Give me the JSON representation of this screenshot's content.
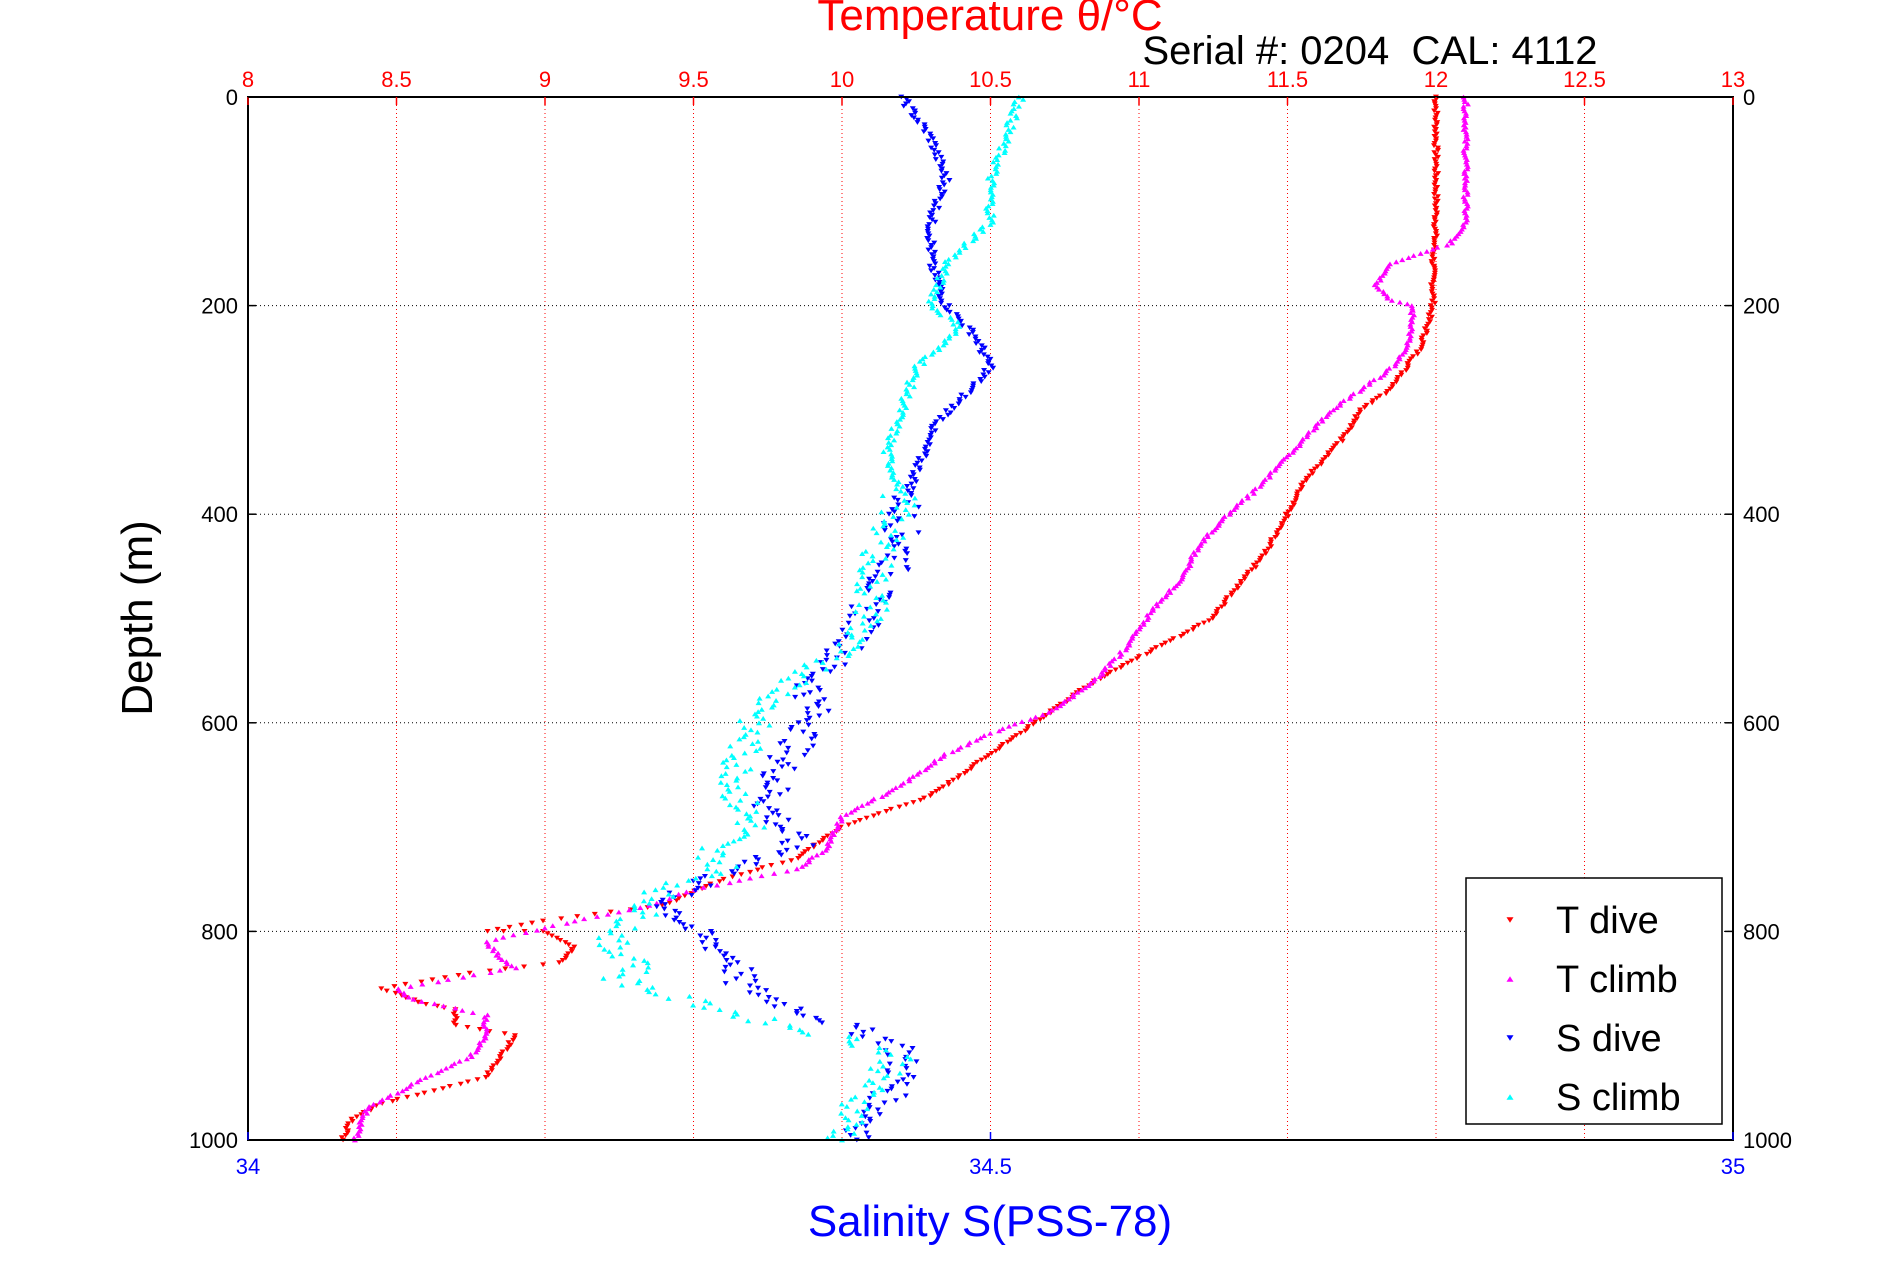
{
  "chart_data": {
    "type": "scatter",
    "title": "Temperature θ/°C",
    "annotation": "Serial #: 0204  CAL: 4112",
    "ylabel": "Depth (m)",
    "xlabel": "Salinity S(PSS-78)",
    "ylim": [
      1000,
      0
    ],
    "y_ticks": [
      "0",
      "200",
      "400",
      "600",
      "800",
      "1000"
    ],
    "x_top": {
      "label": "Temperature θ/°C",
      "range": [
        8,
        13
      ],
      "ticks": [
        "8",
        "8.5",
        "9",
        "9.5",
        "10",
        "10.5",
        "11",
        "11.5",
        "12",
        "12.5",
        "13"
      ],
      "color": "#ff0000"
    },
    "x_bottom": {
      "label": "Salinity S(PSS-78)",
      "range": [
        34,
        35
      ],
      "ticks": [
        "34",
        "34.5",
        "35"
      ],
      "color": "#0000ff"
    },
    "grid": true,
    "legend_position": "bottom-right",
    "series": [
      {
        "name": "T dive",
        "axis": "top",
        "color": "#ff0000",
        "marker": "triangle-down",
        "points": [
          [
            12.0,
            0
          ],
          [
            12.0,
            40
          ],
          [
            12.0,
            80
          ],
          [
            12.0,
            120
          ],
          [
            11.99,
            160
          ],
          [
            11.99,
            200
          ],
          [
            11.97,
            220
          ],
          [
            11.95,
            240
          ],
          [
            11.9,
            260
          ],
          [
            11.85,
            280
          ],
          [
            11.75,
            300
          ],
          [
            11.68,
            330
          ],
          [
            11.55,
            370
          ],
          [
            11.5,
            400
          ],
          [
            11.42,
            440
          ],
          [
            11.3,
            480
          ],
          [
            11.25,
            500
          ],
          [
            11.05,
            530
          ],
          [
            10.85,
            560
          ],
          [
            10.75,
            580
          ],
          [
            10.6,
            610
          ],
          [
            10.45,
            640
          ],
          [
            10.3,
            670
          ],
          [
            10.0,
            700
          ],
          [
            9.85,
            730
          ],
          [
            9.6,
            750
          ],
          [
            9.4,
            775
          ],
          [
            9.0,
            790
          ],
          [
            8.8,
            800
          ],
          [
            9.0,
            800
          ],
          [
            9.1,
            815
          ],
          [
            9.05,
            830
          ],
          [
            8.75,
            840
          ],
          [
            8.45,
            855
          ],
          [
            8.6,
            870
          ],
          [
            8.7,
            875
          ],
          [
            8.7,
            890
          ],
          [
            8.9,
            900
          ],
          [
            8.85,
            920
          ],
          [
            8.8,
            940
          ],
          [
            8.6,
            955
          ],
          [
            8.45,
            965
          ],
          [
            8.35,
            980
          ],
          [
            8.32,
            1000
          ]
        ]
      },
      {
        "name": "T climb",
        "axis": "top",
        "color": "#ff00ff",
        "marker": "triangle-up",
        "points": [
          [
            12.1,
            0
          ],
          [
            12.1,
            40
          ],
          [
            12.1,
            80
          ],
          [
            12.1,
            120
          ],
          [
            12.05,
            140
          ],
          [
            11.95,
            150
          ],
          [
            11.85,
            160
          ],
          [
            11.8,
            180
          ],
          [
            11.85,
            195
          ],
          [
            11.92,
            200
          ],
          [
            11.92,
            220
          ],
          [
            11.9,
            240
          ],
          [
            11.85,
            260
          ],
          [
            11.75,
            280
          ],
          [
            11.65,
            300
          ],
          [
            11.55,
            330
          ],
          [
            11.45,
            360
          ],
          [
            11.38,
            380
          ],
          [
            11.3,
            400
          ],
          [
            11.2,
            430
          ],
          [
            11.15,
            460
          ],
          [
            11.05,
            490
          ],
          [
            10.95,
            530
          ],
          [
            10.85,
            560
          ],
          [
            10.7,
            590
          ],
          [
            10.5,
            610
          ],
          [
            10.35,
            630
          ],
          [
            10.2,
            660
          ],
          [
            10.0,
            690
          ],
          [
            9.95,
            720
          ],
          [
            9.85,
            740
          ],
          [
            9.5,
            760
          ],
          [
            9.35,
            775
          ],
          [
            9.1,
            790
          ],
          [
            8.8,
            810
          ],
          [
            8.85,
            825
          ],
          [
            8.9,
            835
          ],
          [
            8.5,
            855
          ],
          [
            8.55,
            865
          ],
          [
            8.8,
            880
          ],
          [
            8.8,
            900
          ],
          [
            8.75,
            920
          ],
          [
            8.6,
            940
          ],
          [
            8.5,
            955
          ],
          [
            8.4,
            970
          ],
          [
            8.36,
            1000
          ]
        ]
      },
      {
        "name": "S dive",
        "axis": "bottom",
        "color": "#0000ff",
        "marker": "triangle-down",
        "points": [
          [
            34.44,
            0
          ],
          [
            34.46,
            40
          ],
          [
            34.47,
            80
          ],
          [
            34.46,
            120
          ],
          [
            34.46,
            160
          ],
          [
            34.47,
            200
          ],
          [
            34.49,
            230
          ],
          [
            34.5,
            260
          ],
          [
            34.48,
            290
          ],
          [
            34.46,
            320
          ],
          [
            34.45,
            360
          ],
          [
            34.44,
            400
          ],
          [
            34.44,
            440
          ],
          [
            34.42,
            480
          ],
          [
            34.41,
            520
          ],
          [
            34.38,
            560
          ],
          [
            34.38,
            600
          ],
          [
            34.36,
            640
          ],
          [
            34.35,
            680
          ],
          [
            34.37,
            720
          ],
          [
            34.32,
            745
          ],
          [
            34.28,
            770
          ],
          [
            34.3,
            800
          ],
          [
            34.33,
            830
          ],
          [
            34.33,
            850
          ],
          [
            34.36,
            870
          ],
          [
            34.4,
            890
          ],
          [
            34.44,
            910
          ],
          [
            34.44,
            940
          ],
          [
            34.43,
            960
          ],
          [
            34.42,
            980
          ],
          [
            34.41,
            1000
          ]
        ]
      },
      {
        "name": "S climb",
        "axis": "bottom",
        "color": "#00ffff",
        "marker": "triangle-up",
        "points": [
          [
            34.52,
            0
          ],
          [
            34.51,
            40
          ],
          [
            34.5,
            80
          ],
          [
            34.5,
            120
          ],
          [
            34.47,
            160
          ],
          [
            34.46,
            200
          ],
          [
            34.48,
            220
          ],
          [
            34.45,
            260
          ],
          [
            34.44,
            300
          ],
          [
            34.43,
            340
          ],
          [
            34.44,
            380
          ],
          [
            34.43,
            420
          ],
          [
            34.42,
            460
          ],
          [
            34.42,
            500
          ],
          [
            34.39,
            540
          ],
          [
            34.36,
            570
          ],
          [
            34.34,
            600
          ],
          [
            34.33,
            640
          ],
          [
            34.33,
            670
          ],
          [
            34.34,
            700
          ],
          [
            34.31,
            720
          ],
          [
            34.32,
            740
          ],
          [
            34.28,
            760
          ],
          [
            34.26,
            790
          ],
          [
            34.24,
            815
          ],
          [
            34.27,
            830
          ],
          [
            34.25,
            845
          ],
          [
            34.28,
            860
          ],
          [
            34.32,
            875
          ],
          [
            34.36,
            890
          ],
          [
            34.41,
            905
          ],
          [
            34.44,
            920
          ],
          [
            34.42,
            945
          ],
          [
            34.41,
            970
          ],
          [
            34.4,
            1000
          ]
        ]
      }
    ]
  }
}
